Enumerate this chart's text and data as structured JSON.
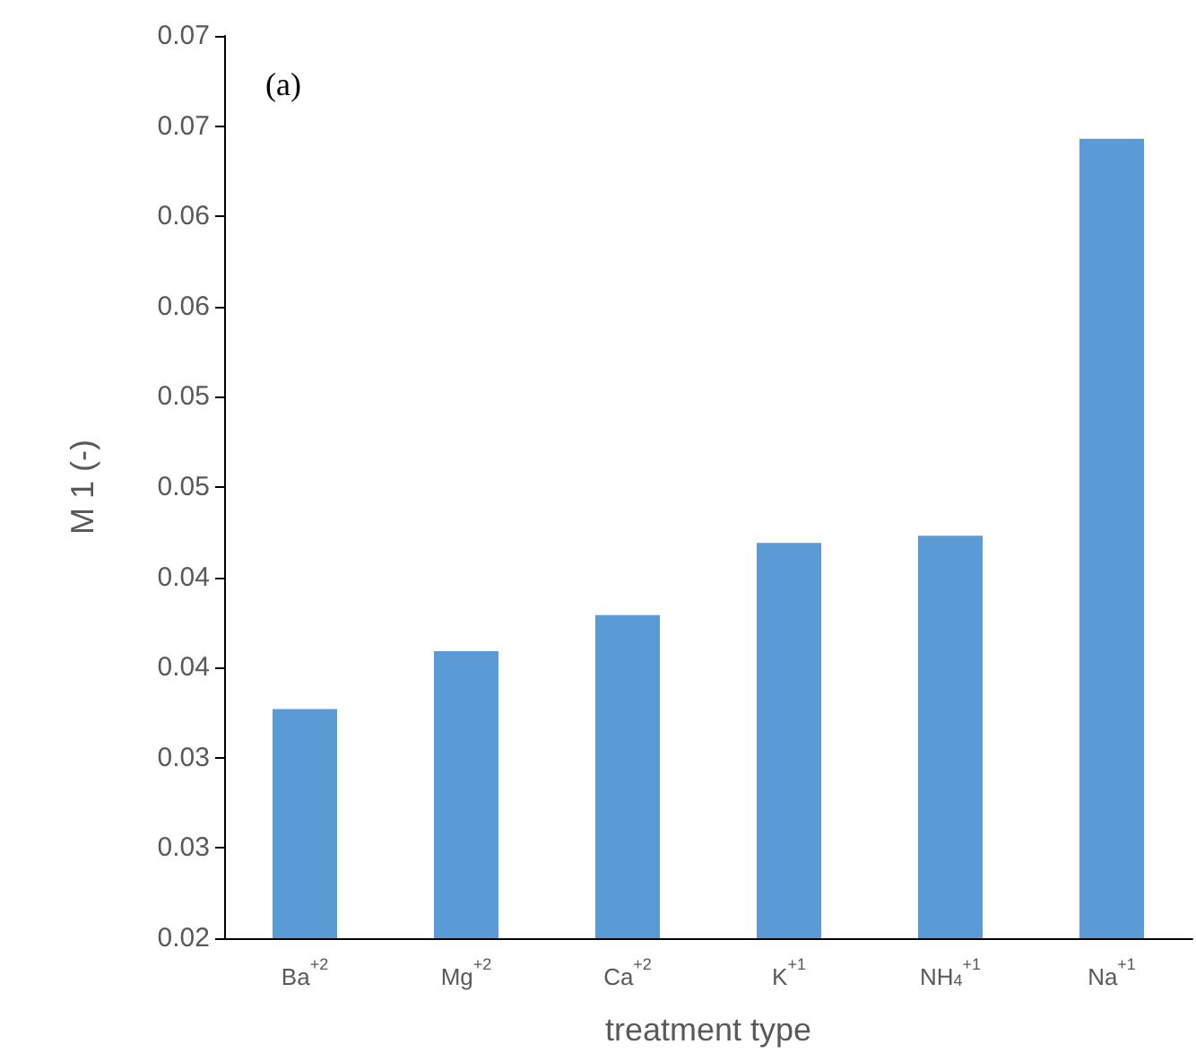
{
  "chart_data": {
    "type": "bar",
    "xlabel": "treatment type",
    "ylabel": "M 1 (-)",
    "annotations": [
      "(a)"
    ],
    "categories": [
      "Ba$^{+2}$",
      "Mg$^{+2}$",
      "Ca$^{+2}$",
      "K$^{+1}$",
      "NH$_{4}$$^{+1}$",
      "Na$^{+1}$"
    ],
    "values": [
      0.0327,
      0.0359,
      0.0379,
      0.0419,
      0.0423,
      0.0643
    ],
    "color": "#5b9bd5",
    "ylim": [
      0.02,
      0.07
    ],
    "yticks": [
      {
        "value": 0.02,
        "label": "0.02"
      },
      {
        "value": 0.025,
        "label": "0.03"
      },
      {
        "value": 0.03,
        "label": "0.03"
      },
      {
        "value": 0.035,
        "label": "0.04"
      },
      {
        "value": 0.04,
        "label": "0.04"
      },
      {
        "value": 0.045,
        "label": "0.05"
      },
      {
        "value": 0.05,
        "label": "0.05"
      },
      {
        "value": 0.055,
        "label": "0.06"
      },
      {
        "value": 0.06,
        "label": "0.06"
      },
      {
        "value": 0.065,
        "label": "0.07"
      },
      {
        "value": 0.07,
        "label": "0.07"
      }
    ],
    "grid": false
  }
}
